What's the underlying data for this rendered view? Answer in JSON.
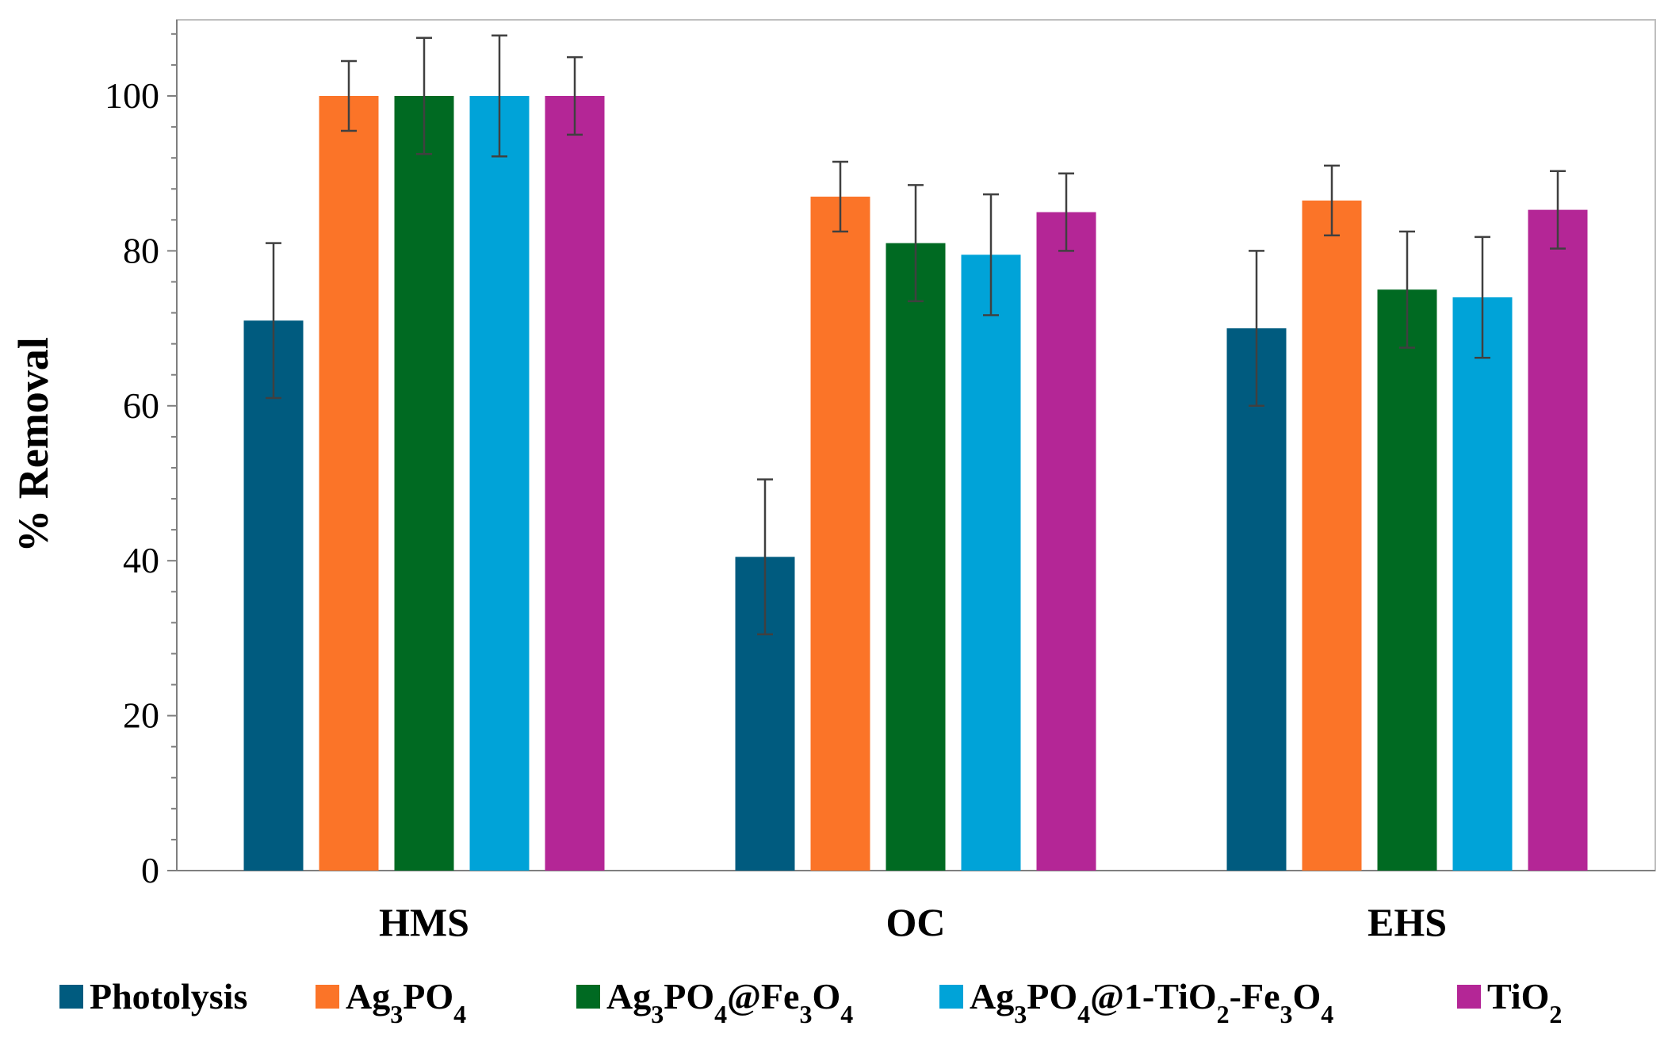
{
  "chart_data": {
    "type": "bar",
    "title": "",
    "xlabel": "",
    "ylabel": "% Removal",
    "ylim": [
      0,
      108
    ],
    "yticks": [
      0,
      20,
      40,
      60,
      80,
      100
    ],
    "grid": false,
    "legend_position": "bottom",
    "categories": [
      "HMS",
      "OC",
      "EHS"
    ],
    "series": [
      {
        "name": "Photolysis",
        "legend_main": "Photolysis",
        "legend_parts": [
          [
            "Photolysis",
            ""
          ]
        ],
        "color": "#005b7f",
        "values": [
          71,
          40.5,
          70
        ],
        "errors": [
          10,
          10,
          10
        ]
      },
      {
        "name": "Ag3PO4",
        "legend_parts": [
          [
            "Ag",
            ""
          ],
          [
            "3",
            "sub"
          ],
          [
            "PO",
            ""
          ],
          [
            "4",
            "sub"
          ]
        ],
        "color": "#fb7428",
        "values": [
          100,
          87,
          86.5
        ],
        "errors": [
          4.5,
          4.5,
          4.5
        ]
      },
      {
        "name": "Ag3PO4@Fe3O4",
        "legend_parts": [
          [
            "Ag",
            ""
          ],
          [
            "3",
            "sub"
          ],
          [
            "PO",
            ""
          ],
          [
            "4",
            "sub"
          ],
          [
            "@Fe",
            ""
          ],
          [
            "3",
            "sub"
          ],
          [
            "O",
            ""
          ],
          [
            "4",
            "sub"
          ]
        ],
        "color": "#006a22",
        "values": [
          100,
          81,
          75
        ],
        "errors": [
          7.5,
          7.5,
          7.5
        ]
      },
      {
        "name": "Ag3PO4@1-TiO2-Fe3O4",
        "legend_parts": [
          [
            "Ag",
            ""
          ],
          [
            "3",
            "sub"
          ],
          [
            "PO",
            ""
          ],
          [
            "4",
            "sub"
          ],
          [
            "@1-TiO",
            ""
          ],
          [
            "2",
            "sub"
          ],
          [
            "-Fe",
            ""
          ],
          [
            "3",
            "sub"
          ],
          [
            "O",
            ""
          ],
          [
            "4",
            "sub"
          ]
        ],
        "color": "#00a3d8",
        "values": [
          100,
          79.5,
          74
        ],
        "errors": [
          7.8,
          7.8,
          7.8
        ]
      },
      {
        "name": "TiO2",
        "legend_parts": [
          [
            "TiO",
            ""
          ],
          [
            "2",
            "sub"
          ]
        ],
        "color": "#b42696",
        "values": [
          100,
          85,
          85.3
        ],
        "errors": [
          5,
          5,
          5
        ]
      }
    ]
  }
}
